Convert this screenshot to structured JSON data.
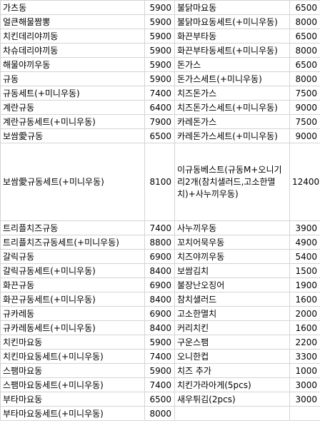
{
  "rows": [
    [
      "가츠동",
      "5900",
      "불닭마요동",
      "6500"
    ],
    [
      "얼큰해물짬뽕",
      "5900",
      "불닭마요동세트(+미니우동)",
      "8000"
    ],
    [
      "치킨데리야끼동",
      "5900",
      "화끈부타동",
      "6500"
    ],
    [
      "차슈데리야끼동",
      "5900",
      "화끈부타동세트(+미니우동)",
      "8000"
    ],
    [
      "해물야끼우동",
      "5900",
      "돈가스",
      "6500"
    ],
    [
      "규동",
      "5900",
      "돈가스세트(+미니우동)",
      "8000"
    ],
    [
      "규동세트(+미니우동)",
      "7400",
      "치즈돈가스",
      "7500"
    ],
    [
      "계란규동",
      "6400",
      "치즈돈가스세트(+미니우동)",
      "9000"
    ],
    [
      "계란규동세트(+미니우동)",
      "7900",
      "카레돈가스",
      "7500"
    ],
    [
      "보쌈愛규동",
      "6500",
      "카레돈가스세트(+미니우동)",
      "9000"
    ],
    [
      "보쌈愛규동세트(+미니우동)",
      "8100",
      "이규동베스트(규동M+오니기리2개(참치샐러드,고소한멸치)+사누끼우동)",
      "12400"
    ],
    [
      "트리플치즈규동",
      "7400",
      "사누끼우동",
      "3900"
    ],
    [
      "트리플치즈규동세트(+미니우동)",
      "8800",
      "꼬치어묵우동",
      "4900"
    ],
    [
      "갈릭규동",
      "6900",
      "치즈야끼우동",
      "5400"
    ],
    [
      "갈릭규동세트(+미니우동)",
      "8400",
      "보쌈김치",
      "1500"
    ],
    [
      "화끈규동",
      "6900",
      "불장난오징어",
      "1900"
    ],
    [
      "화끈규동세트(+미니우동)",
      "8400",
      "참치샐러드",
      "1600"
    ],
    [
      "규카레동",
      "6900",
      "고소한멸치",
      "2000"
    ],
    [
      "규카레동세트(+미니우동)",
      "8400",
      "커리치킨",
      "1600"
    ],
    [
      "치킨마요동",
      "5900",
      "구운스팸",
      "2200"
    ],
    [
      "치킨마요동세트(+미니우동)",
      "7400",
      "오니한컵",
      "3300"
    ],
    [
      "스팸마요동",
      "5900",
      "치즈 추가",
      "1000"
    ],
    [
      "스팸마요동세트(+미니우동)",
      "7400",
      "치킨가라아게(5pcs)",
      "3000"
    ],
    [
      "부타마요동",
      "6500",
      "새우튀김(2pcs)",
      "3000"
    ],
    [
      "부타마요동세트(+미니우동)",
      "8000",
      "",
      ""
    ]
  ]
}
